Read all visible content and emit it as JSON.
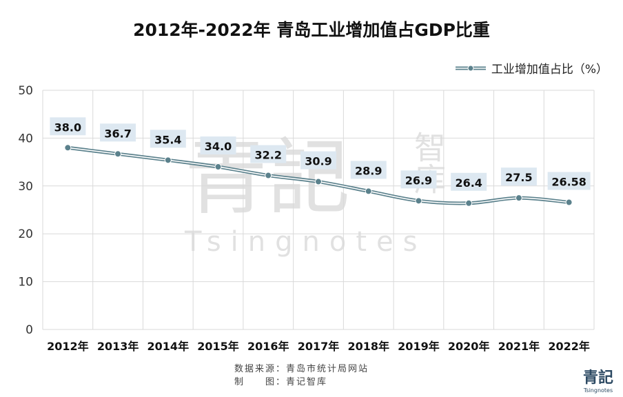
{
  "chart_data": {
    "type": "line",
    "title": "2012年-2022年 青岛工业增加值占GDP比重",
    "categories": [
      "2012年",
      "2013年",
      "2014年",
      "2015年",
      "2016年",
      "2017年",
      "2018年",
      "2019年",
      "2020年",
      "2021年",
      "2022年"
    ],
    "series": [
      {
        "name": "工业增加值占比（%）",
        "values": [
          38.0,
          36.7,
          35.4,
          34.0,
          32.2,
          30.9,
          28.9,
          26.9,
          26.4,
          27.5,
          26.58
        ],
        "labels": [
          "38.0",
          "36.7",
          "35.4",
          "34.0",
          "32.2",
          "30.9",
          "28.9",
          "26.9",
          "26.4",
          "27.5",
          "26.58"
        ],
        "color": "#5b818c"
      }
    ],
    "ylim": [
      0,
      50
    ],
    "yticks": [
      0,
      10,
      20,
      30,
      40,
      50
    ],
    "grid": true,
    "legend": "top-right"
  },
  "footer": {
    "source": "数据来源：青岛市统计局网站",
    "maker": "制　　图：青记智库"
  },
  "watermark": {
    "text": "青記",
    "sub": "智库",
    "latin": "Tsingnotes"
  }
}
